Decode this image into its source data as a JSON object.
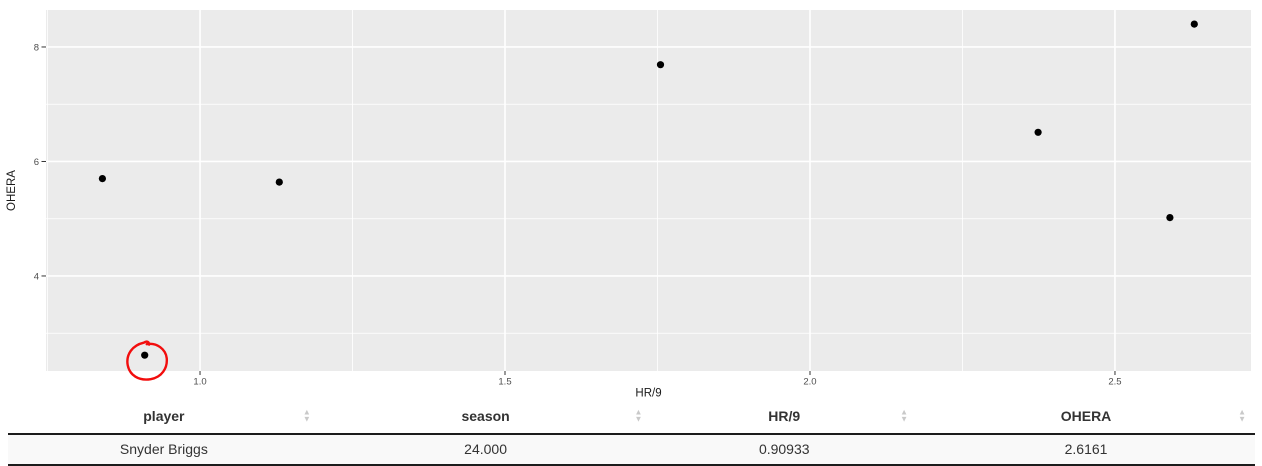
{
  "chart_data": {
    "type": "scatter",
    "title": "",
    "xlabel": "HR/9",
    "ylabel": "OHERA",
    "xlim": [
      0.7475,
      2.723
    ],
    "ylim": [
      2.34,
      8.646
    ],
    "grid": true,
    "legend": false,
    "x_major_ticks": [
      1.0,
      1.5,
      2.0,
      2.5
    ],
    "x_tick_labels": [
      "1.0",
      "1.5",
      "2.0",
      "2.5"
    ],
    "x_minor_ticks": [
      0.75,
      1.25,
      1.75,
      2.25
    ],
    "y_major_ticks": [
      4,
      6,
      8
    ],
    "y_tick_labels": [
      "4",
      "6",
      "8"
    ],
    "y_minor_ticks": [
      3,
      5,
      7
    ],
    "points": [
      {
        "x": 0.84,
        "y": 5.7
      },
      {
        "x": 0.90933,
        "y": 2.6161,
        "annotated": true
      },
      {
        "x": 1.13,
        "y": 5.64
      },
      {
        "x": 1.755,
        "y": 7.69
      },
      {
        "x": 2.374,
        "y": 6.51
      },
      {
        "x": 2.59,
        "y": 5.02
      },
      {
        "x": 2.63,
        "y": 8.4
      }
    ],
    "colors": {
      "panel_bg": "#ebebeb",
      "gridline": "#ffffff",
      "tick_label": "#4d4d4d",
      "tick_mark": "#333333",
      "axis_title": "#1a1a1a",
      "point": "#000000",
      "annotation": "#f20d0d"
    }
  },
  "table": {
    "columns": [
      {
        "label": "player"
      },
      {
        "label": "season"
      },
      {
        "label": "HR/9"
      },
      {
        "label": "OHERA"
      }
    ],
    "rows": [
      {
        "player": "Snyder Briggs",
        "season": "24.000",
        "hr9": "0.90933",
        "ohera": "2.6161"
      }
    ],
    "sort_glyph_up": "▲",
    "sort_glyph_down": "▼"
  }
}
